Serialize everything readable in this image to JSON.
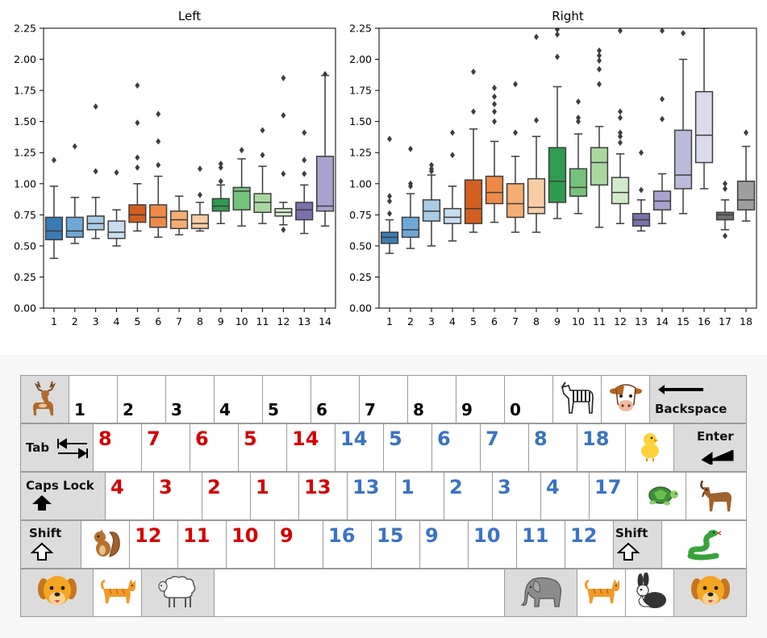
{
  "chart_data": [
    {
      "type": "box",
      "title": "Left",
      "ylim": [
        0,
        2.25
      ],
      "yticks": [
        "0.00",
        "0.25",
        "0.50",
        "0.75",
        "1.00",
        "1.25",
        "1.50",
        "1.75",
        "2.00",
        "2.25"
      ],
      "categories": [
        "1",
        "2",
        "3",
        "4",
        "5",
        "6",
        "7",
        "8",
        "9",
        "10",
        "11",
        "12",
        "13",
        "14"
      ],
      "colors": [
        "#3b7bb5",
        "#6fa8d6",
        "#a8cbe6",
        "#c9ddf0",
        "#d35f1f",
        "#ee8a45",
        "#f5ad72",
        "#f7cda4",
        "#2f9c50",
        "#75c27a",
        "#a9d9a0",
        "#d2ebcb",
        "#7d70ae",
        "#a8a3cd"
      ],
      "boxes": [
        {
          "whislo": 0.4,
          "q1": 0.55,
          "med": 0.62,
          "q3": 0.73,
          "whishi": 0.98,
          "fliers": [
            1.19
          ]
        },
        {
          "whislo": 0.52,
          "q1": 0.57,
          "med": 0.62,
          "q3": 0.73,
          "whishi": 0.89,
          "fliers": [
            1.3
          ]
        },
        {
          "whislo": 0.56,
          "q1": 0.63,
          "med": 0.68,
          "q3": 0.74,
          "whishi": 0.89,
          "fliers": [
            1.1,
            1.62
          ]
        },
        {
          "whislo": 0.5,
          "q1": 0.56,
          "med": 0.61,
          "q3": 0.7,
          "whishi": 0.79,
          "fliers": [
            1.09
          ]
        },
        {
          "whislo": 0.62,
          "q1": 0.69,
          "med": 0.75,
          "q3": 0.83,
          "whishi": 1.0,
          "fliers": [
            1.13,
            1.21,
            1.49,
            1.79
          ]
        },
        {
          "whislo": 0.57,
          "q1": 0.65,
          "med": 0.73,
          "q3": 0.83,
          "whishi": 1.06,
          "fliers": [
            1.15,
            1.34,
            1.56
          ]
        },
        {
          "whislo": 0.59,
          "q1": 0.64,
          "med": 0.71,
          "q3": 0.78,
          "whishi": 0.9,
          "fliers": []
        },
        {
          "whislo": 0.62,
          "q1": 0.64,
          "med": 0.68,
          "q3": 0.75,
          "whishi": 0.85,
          "fliers": [
            0.91,
            1.12
          ]
        },
        {
          "whislo": 0.68,
          "q1": 0.78,
          "med": 0.82,
          "q3": 0.88,
          "whishi": 0.99,
          "fliers": [
            1.02,
            1.13,
            1.16
          ]
        },
        {
          "whislo": 0.66,
          "q1": 0.79,
          "med": 0.94,
          "q3": 0.97,
          "whishi": 1.2,
          "fliers": [
            1.27
          ]
        },
        {
          "whislo": 0.68,
          "q1": 0.77,
          "med": 0.85,
          "q3": 0.92,
          "whishi": 1.14,
          "fliers": [
            1.23,
            1.43
          ]
        },
        {
          "whislo": 0.67,
          "q1": 0.74,
          "med": 0.77,
          "q3": 0.8,
          "whishi": 0.85,
          "fliers": [
            0.63,
            1.08,
            1.55,
            1.85
          ]
        },
        {
          "whislo": 0.6,
          "q1": 0.71,
          "med": 0.79,
          "q3": 0.85,
          "whishi": 0.99,
          "fliers": [
            1.08,
            1.19,
            1.41
          ]
        },
        {
          "whislo": 0.66,
          "q1": 0.78,
          "med": 0.82,
          "q3": 1.22,
          "whishi": 1.87,
          "fliers": [
            1.88
          ]
        }
      ]
    },
    {
      "type": "box",
      "title": "Right",
      "ylim": [
        0,
        2.25
      ],
      "yticks": [
        "0.00",
        "0.25",
        "0.50",
        "0.75",
        "1.00",
        "1.25",
        "1.50",
        "1.75",
        "2.00",
        "2.25"
      ],
      "categories": [
        "1",
        "2",
        "3",
        "4",
        "5",
        "6",
        "7",
        "8",
        "9",
        "10",
        "11",
        "12",
        "13",
        "14",
        "15",
        "16",
        "17",
        "18"
      ],
      "colors": [
        "#3b7bb5",
        "#6fa8d6",
        "#a8cbe6",
        "#c9ddf0",
        "#d35f1f",
        "#ee8a45",
        "#f5ad72",
        "#f7cda4",
        "#2f9c50",
        "#75c27a",
        "#a9d9a0",
        "#d2ebcb",
        "#7d70ae",
        "#a8a3cd",
        "#bcbadb",
        "#dadaeb",
        "#6e6e6e",
        "#9e9e9e"
      ],
      "boxes": [
        {
          "whislo": 0.44,
          "q1": 0.52,
          "med": 0.57,
          "q3": 0.61,
          "whishi": 0.71,
          "fliers": [
            0.76,
            0.86,
            0.9,
            1.36
          ]
        },
        {
          "whislo": 0.48,
          "q1": 0.57,
          "med": 0.63,
          "q3": 0.73,
          "whishi": 0.92,
          "fliers": [
            0.98,
            1.0,
            1.28
          ]
        },
        {
          "whislo": 0.5,
          "q1": 0.7,
          "med": 0.78,
          "q3": 0.87,
          "whishi": 1.07,
          "fliers": [
            1.1,
            1.12,
            1.15
          ]
        },
        {
          "whislo": 0.54,
          "q1": 0.68,
          "med": 0.73,
          "q3": 0.8,
          "whishi": 0.98,
          "fliers": [
            1.23,
            1.41
          ]
        },
        {
          "whislo": 0.61,
          "q1": 0.68,
          "med": 0.8,
          "q3": 1.03,
          "whishi": 1.44,
          "fliers": [
            1.58,
            1.9
          ]
        },
        {
          "whislo": 0.69,
          "q1": 0.84,
          "med": 0.93,
          "q3": 1.06,
          "whishi": 1.34,
          "fliers": [
            1.5,
            1.58,
            1.64,
            1.7,
            1.77
          ]
        },
        {
          "whislo": 0.61,
          "q1": 0.73,
          "med": 0.84,
          "q3": 1.0,
          "whishi": 1.22,
          "fliers": [
            1.41,
            1.8
          ]
        },
        {
          "whislo": 0.61,
          "q1": 0.76,
          "med": 0.81,
          "q3": 1.04,
          "whishi": 1.38,
          "fliers": [
            1.51,
            2.18
          ]
        },
        {
          "whislo": 0.72,
          "q1": 0.85,
          "med": 1.02,
          "q3": 1.29,
          "whishi": 1.78,
          "fliers": [
            2.02,
            2.2,
            2.24
          ]
        },
        {
          "whislo": 0.76,
          "q1": 0.9,
          "med": 0.97,
          "q3": 1.12,
          "whishi": 1.4,
          "fliers": [
            1.5,
            1.53,
            1.66
          ]
        },
        {
          "whislo": 0.65,
          "q1": 0.99,
          "med": 1.17,
          "q3": 1.29,
          "whishi": 1.46,
          "fliers": [
            1.8,
            1.92,
            1.99,
            2.03,
            2.07
          ]
        },
        {
          "whislo": 0.68,
          "q1": 0.84,
          "med": 0.93,
          "q3": 1.05,
          "whishi": 1.24,
          "fliers": [
            1.33,
            1.38,
            1.41,
            1.53,
            1.58,
            2.23
          ]
        },
        {
          "whislo": 0.62,
          "q1": 0.66,
          "med": 0.71,
          "q3": 0.76,
          "whishi": 0.87,
          "fliers": [
            0.95,
            1.25
          ]
        },
        {
          "whislo": 0.68,
          "q1": 0.79,
          "med": 0.86,
          "q3": 0.94,
          "whishi": 1.08,
          "fliers": [
            1.52,
            1.68,
            2.23
          ]
        },
        {
          "whislo": 0.76,
          "q1": 0.96,
          "med": 1.07,
          "q3": 1.43,
          "whishi": 2.0,
          "fliers": [
            2.21
          ]
        },
        {
          "whislo": 0.96,
          "q1": 1.17,
          "med": 1.39,
          "q3": 1.74,
          "whishi": 2.25,
          "fliers": []
        },
        {
          "whislo": 0.63,
          "q1": 0.71,
          "med": 0.75,
          "q3": 0.77,
          "whishi": 0.87,
          "fliers": [
            0.58,
            0.96,
            1.0
          ]
        },
        {
          "whislo": 0.7,
          "q1": 0.79,
          "med": 0.87,
          "q3": 1.02,
          "whishi": 1.3,
          "fliers": [
            1.41
          ]
        }
      ]
    }
  ],
  "keyboard": {
    "rows": [
      {
        "keys": [
          {
            "kind": "icon",
            "icon": "deer-icon"
          },
          {
            "kind": "num",
            "text": "1"
          },
          {
            "kind": "num",
            "text": "2"
          },
          {
            "kind": "num",
            "text": "3"
          },
          {
            "kind": "num",
            "text": "4"
          },
          {
            "kind": "num",
            "text": "5"
          },
          {
            "kind": "num",
            "text": "6"
          },
          {
            "kind": "num",
            "text": "7"
          },
          {
            "kind": "num",
            "text": "8"
          },
          {
            "kind": "num",
            "text": "9"
          },
          {
            "kind": "num",
            "text": "0"
          },
          {
            "kind": "icon",
            "icon": "zebra-icon"
          },
          {
            "kind": "icon",
            "icon": "cow-icon"
          },
          {
            "kind": "special",
            "name": "backspace",
            "label": "Backspace"
          }
        ]
      },
      {
        "keys": [
          {
            "kind": "special",
            "name": "tab",
            "label": "Tab"
          },
          {
            "kind": "val",
            "text": "8",
            "color": "red"
          },
          {
            "kind": "val",
            "text": "7",
            "color": "red"
          },
          {
            "kind": "val",
            "text": "6",
            "color": "red"
          },
          {
            "kind": "val",
            "text": "5",
            "color": "red"
          },
          {
            "kind": "val",
            "text": "14",
            "color": "red"
          },
          {
            "kind": "val",
            "text": "14",
            "color": "blue"
          },
          {
            "kind": "val",
            "text": "5",
            "color": "blue"
          },
          {
            "kind": "val",
            "text": "6",
            "color": "blue"
          },
          {
            "kind": "val",
            "text": "7",
            "color": "blue"
          },
          {
            "kind": "val",
            "text": "8",
            "color": "blue"
          },
          {
            "kind": "val",
            "text": "18",
            "color": "blue"
          },
          {
            "kind": "icon",
            "icon": "chick-icon"
          },
          {
            "kind": "special",
            "name": "enter",
            "label": "Enter"
          }
        ]
      },
      {
        "keys": [
          {
            "kind": "special",
            "name": "caps-lock",
            "label": "Caps Lock"
          },
          {
            "kind": "val",
            "text": "4",
            "color": "red"
          },
          {
            "kind": "val",
            "text": "3",
            "color": "red"
          },
          {
            "kind": "val",
            "text": "2",
            "color": "red"
          },
          {
            "kind": "val",
            "text": "1",
            "color": "red"
          },
          {
            "kind": "val",
            "text": "13",
            "color": "red"
          },
          {
            "kind": "val",
            "text": "13",
            "color": "blue"
          },
          {
            "kind": "val",
            "text": "1",
            "color": "blue"
          },
          {
            "kind": "val",
            "text": "2",
            "color": "blue"
          },
          {
            "kind": "val",
            "text": "3",
            "color": "blue"
          },
          {
            "kind": "val",
            "text": "4",
            "color": "blue"
          },
          {
            "kind": "val",
            "text": "17",
            "color": "blue"
          },
          {
            "kind": "icon",
            "icon": "turtle-icon"
          },
          {
            "kind": "icon",
            "icon": "goat-icon"
          }
        ]
      },
      {
        "keys": [
          {
            "kind": "special",
            "name": "shift-left",
            "label": "Shift"
          },
          {
            "kind": "icon",
            "icon": "squirrel-icon"
          },
          {
            "kind": "val",
            "text": "12",
            "color": "red"
          },
          {
            "kind": "val",
            "text": "11",
            "color": "red"
          },
          {
            "kind": "val",
            "text": "10",
            "color": "red"
          },
          {
            "kind": "val",
            "text": "9",
            "color": "red"
          },
          {
            "kind": "val",
            "text": "16",
            "color": "blue"
          },
          {
            "kind": "val",
            "text": "15",
            "color": "blue"
          },
          {
            "kind": "val",
            "text": "9",
            "color": "blue"
          },
          {
            "kind": "val",
            "text": "10",
            "color": "blue"
          },
          {
            "kind": "val",
            "text": "11",
            "color": "blue"
          },
          {
            "kind": "val",
            "text": "12",
            "color": "blue"
          },
          {
            "kind": "special",
            "name": "shift-right",
            "label": "Shift"
          },
          {
            "kind": "icon",
            "icon": "snake-icon"
          }
        ]
      },
      {
        "keys": [
          {
            "kind": "icon",
            "icon": "dog-icon"
          },
          {
            "kind": "icon",
            "icon": "cat-icon"
          },
          {
            "kind": "icon",
            "icon": "sheep-icon"
          },
          {
            "kind": "space"
          },
          {
            "kind": "icon",
            "icon": "elephant-icon"
          },
          {
            "kind": "icon",
            "icon": "cat-icon"
          },
          {
            "kind": "icon",
            "icon": "rabbit-icon"
          },
          {
            "kind": "icon",
            "icon": "dog-icon"
          }
        ]
      }
    ]
  }
}
